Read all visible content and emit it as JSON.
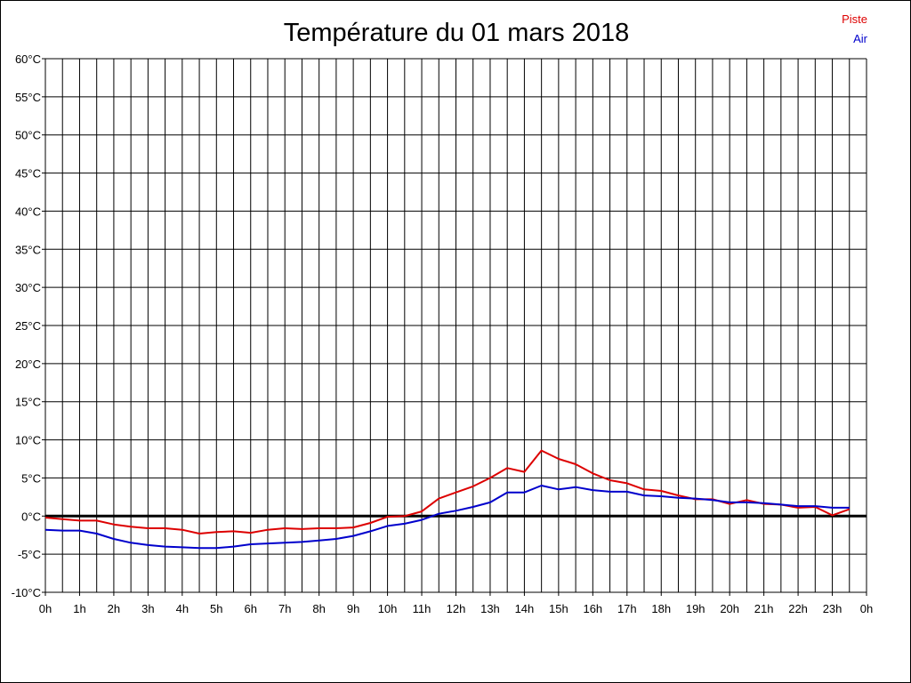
{
  "chart_data": {
    "type": "line",
    "title": "Température du 01 mars 2018",
    "xlabel": "",
    "ylabel": "",
    "grid": true,
    "legend_position": "top-right",
    "ylim": [
      -10,
      60
    ],
    "xlim": [
      0,
      24
    ],
    "y_ticks": [
      {
        "value": 60,
        "label": "60°C"
      },
      {
        "value": 55,
        "label": "55°C"
      },
      {
        "value": 50,
        "label": "50°C"
      },
      {
        "value": 45,
        "label": "45°C"
      },
      {
        "value": 40,
        "label": "40°C"
      },
      {
        "value": 35,
        "label": "35°C"
      },
      {
        "value": 30,
        "label": "30°C"
      },
      {
        "value": 25,
        "label": "25°C"
      },
      {
        "value": 20,
        "label": "20°C"
      },
      {
        "value": 15,
        "label": "15°C"
      },
      {
        "value": 10,
        "label": "10°C"
      },
      {
        "value": 5,
        "label": "5°C"
      },
      {
        "value": 0,
        "label": "0°C"
      },
      {
        "value": -5,
        "label": "-5°C"
      },
      {
        "value": -10,
        "label": "-10°C"
      }
    ],
    "x_ticks": [
      {
        "value": 0,
        "label": "0h"
      },
      {
        "value": 1,
        "label": "1h"
      },
      {
        "value": 2,
        "label": "2h"
      },
      {
        "value": 3,
        "label": "3h"
      },
      {
        "value": 4,
        "label": "4h"
      },
      {
        "value": 5,
        "label": "5h"
      },
      {
        "value": 6,
        "label": "6h"
      },
      {
        "value": 7,
        "label": "7h"
      },
      {
        "value": 8,
        "label": "8h"
      },
      {
        "value": 9,
        "label": "9h"
      },
      {
        "value": 10,
        "label": "10h"
      },
      {
        "value": 11,
        "label": "11h"
      },
      {
        "value": 12,
        "label": "12h"
      },
      {
        "value": 13,
        "label": "13h"
      },
      {
        "value": 14,
        "label": "14h"
      },
      {
        "value": 15,
        "label": "15h"
      },
      {
        "value": 16,
        "label": "16h"
      },
      {
        "value": 17,
        "label": "17h"
      },
      {
        "value": 18,
        "label": "18h"
      },
      {
        "value": 19,
        "label": "19h"
      },
      {
        "value": 20,
        "label": "20h"
      },
      {
        "value": 21,
        "label": "21h"
      },
      {
        "value": 22,
        "label": "22h"
      },
      {
        "value": 23,
        "label": "23h"
      },
      {
        "value": 24,
        "label": "0h"
      }
    ],
    "series": [
      {
        "name": "Piste",
        "color": "#dd0000",
        "x": [
          0,
          0.5,
          1,
          1.5,
          2,
          2.5,
          3,
          3.5,
          4,
          4.5,
          5,
          5.5,
          6,
          6.5,
          7,
          7.5,
          8,
          8.5,
          9,
          9.5,
          10,
          10.5,
          11,
          11.5,
          12,
          12.5,
          13,
          13.5,
          14,
          14.5,
          15,
          15.5,
          16,
          16.5,
          17,
          17.5,
          18,
          18.5,
          19,
          19.5,
          20,
          20.5,
          21,
          21.5,
          22,
          22.5,
          23,
          23.5
        ],
        "values": [
          -0.2,
          -0.4,
          -0.6,
          -0.6,
          -1.1,
          -1.4,
          -1.6,
          -1.6,
          -1.8,
          -2.3,
          -2.1,
          -2.0,
          -2.2,
          -1.8,
          -1.6,
          -1.7,
          -1.6,
          -1.6,
          -1.5,
          -0.9,
          -0.1,
          0.0,
          0.6,
          2.3,
          3.1,
          3.9,
          5.0,
          6.3,
          5.8,
          8.6,
          7.5,
          6.8,
          5.6,
          4.7,
          4.3,
          3.5,
          3.3,
          2.7,
          2.2,
          2.2,
          1.6,
          2.1,
          1.6,
          1.5,
          1.1,
          1.2,
          0.1,
          0.9
        ]
      },
      {
        "name": "Air",
        "color": "#0000cc",
        "x": [
          0,
          0.5,
          1,
          1.5,
          2,
          2.5,
          3,
          3.5,
          4,
          4.5,
          5,
          5.5,
          6,
          6.5,
          7,
          7.5,
          8,
          8.5,
          9,
          9.5,
          10,
          10.5,
          11,
          11.5,
          12,
          12.5,
          13,
          13.5,
          14,
          14.5,
          15,
          15.5,
          16,
          16.5,
          17,
          17.5,
          18,
          18.5,
          19,
          19.5,
          20,
          20.5,
          21,
          21.5,
          22,
          22.5,
          23,
          23.5
        ],
        "values": [
          -1.8,
          -1.9,
          -1.9,
          -2.3,
          -3.0,
          -3.5,
          -3.8,
          -4.0,
          -4.1,
          -4.2,
          -4.2,
          -4.0,
          -3.7,
          -3.6,
          -3.5,
          -3.4,
          -3.2,
          -3.0,
          -2.6,
          -2.0,
          -1.3,
          -1.0,
          -0.5,
          0.3,
          0.7,
          1.2,
          1.8,
          3.1,
          3.1,
          4.0,
          3.5,
          3.8,
          3.4,
          3.2,
          3.2,
          2.7,
          2.6,
          2.4,
          2.3,
          2.1,
          1.8,
          1.8,
          1.7,
          1.5,
          1.3,
          1.3,
          1.1,
          1.1
        ]
      }
    ]
  }
}
